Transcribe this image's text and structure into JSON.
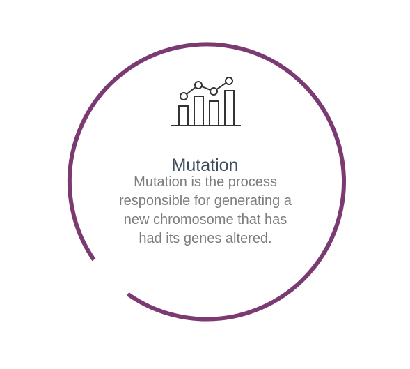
{
  "card": {
    "title": "Mutation",
    "description": "Mutation is the process responsible for generating a new chromosome that has had its genes altered.",
    "icon": "chart-trend-icon"
  },
  "colors": {
    "ring": "#7b3a72",
    "title": "#3f4d5a",
    "description": "#7d7d7d",
    "icon": "#333333"
  }
}
